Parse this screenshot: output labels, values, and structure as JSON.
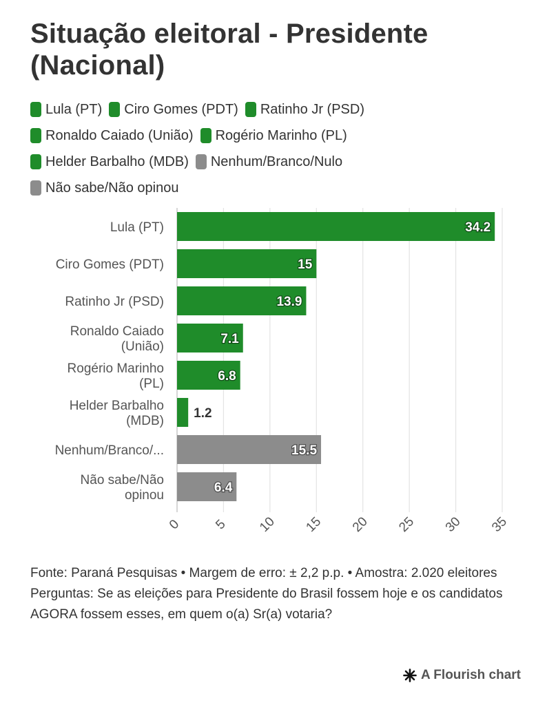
{
  "title": "Situação eleitoral - Presidente (Nacional)",
  "colors": {
    "green": "#1f8c2a",
    "gray": "#8c8c8c"
  },
  "legend": [
    {
      "label": "Lula (PT)",
      "color": "#1f8c2a"
    },
    {
      "label": "Ciro Gomes (PDT)",
      "color": "#1f8c2a"
    },
    {
      "label": "Ratinho Jr (PSD)",
      "color": "#1f8c2a"
    },
    {
      "label": "Ronaldo Caiado (União)",
      "color": "#1f8c2a"
    },
    {
      "label": "Rogério Marinho (PL)",
      "color": "#1f8c2a"
    },
    {
      "label": "Helder Barbalho (MDB)",
      "color": "#1f8c2a"
    },
    {
      "label": "Nenhum/Branco/Nulo",
      "color": "#8c8c8c"
    },
    {
      "label": "Não sabe/Não opinou",
      "color": "#8c8c8c"
    }
  ],
  "chart_data": {
    "type": "bar",
    "orientation": "horizontal",
    "categories": [
      "Lula (PT)",
      "Ciro Gomes (PDT)",
      "Ratinho Jr (PSD)",
      "Ronaldo Caiado (União)",
      "Rogério Marinho (PL)",
      "Helder Barbalho (MDB)",
      "Nenhum/Branco/Nulo",
      "Não sabe/Não opinou"
    ],
    "category_labels": [
      [
        "Lula (PT)"
      ],
      [
        "Ciro Gomes (PDT)"
      ],
      [
        "Ratinho Jr (PSD)"
      ],
      [
        "Ronaldo Caiado",
        "(União)"
      ],
      [
        "Rogério Marinho",
        "(PL)"
      ],
      [
        "Helder Barbalho",
        "(MDB)"
      ],
      [
        "Nenhum/Branco/..."
      ],
      [
        "Não sabe/Não",
        "opinou"
      ]
    ],
    "values": [
      34.2,
      15,
      13.9,
      7.1,
      6.8,
      1.2,
      15.5,
      6.4
    ],
    "value_labels": [
      "34.2",
      "15",
      "13.9",
      "7.1",
      "6.8",
      "1.2",
      "15.5",
      "6.4"
    ],
    "bar_colors": [
      "#1f8c2a",
      "#1f8c2a",
      "#1f8c2a",
      "#1f8c2a",
      "#1f8c2a",
      "#1f8c2a",
      "#8c8c8c",
      "#8c8c8c"
    ],
    "xlim": [
      0,
      35
    ],
    "xticks": [
      0,
      5,
      10,
      15,
      20,
      25,
      30,
      35
    ],
    "grid": true,
    "xlabel": "",
    "ylabel": ""
  },
  "footer": {
    "source": "Fonte: Paraná Pesquisas • Margem de erro: ± 2,2 p.p. • Amostra: 2.020 eleitores",
    "question": "Perguntas: Se as eleições para Presidente do Brasil fossem hoje e os candidatos AGORA fossem esses, em quem o(a) Sr(a) votaria?"
  },
  "brand": {
    "label": "A Flourish chart",
    "icon": "flourish-star-icon"
  }
}
